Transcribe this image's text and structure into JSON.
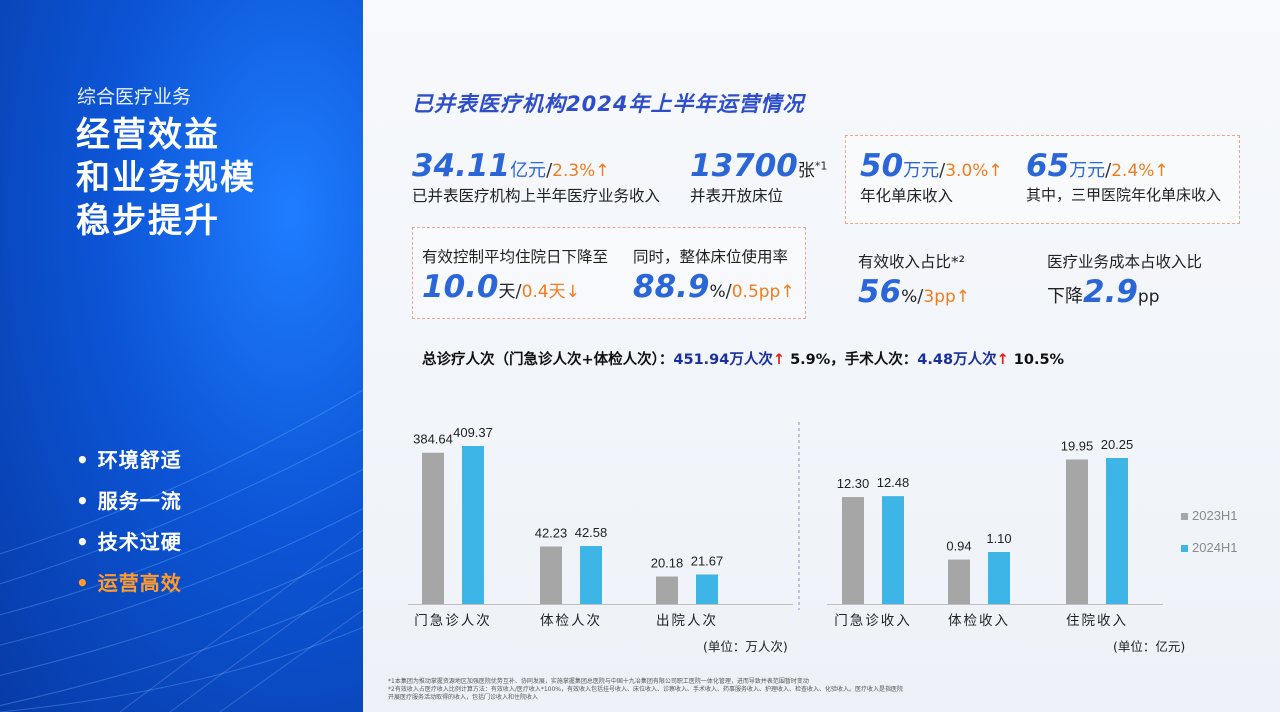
{
  "left_panel": {
    "section": "综合医疗业务",
    "headline": [
      "经营效益",
      "和业务规模",
      "稳步提升"
    ],
    "bullets": [
      {
        "text": "• 环境舒适"
      },
      {
        "text": "• 服务一流"
      },
      {
        "text": "• 技术过硬"
      },
      {
        "text": "• 运营高效"
      }
    ]
  },
  "title": "已并表医疗机构2024年上半年运营情况",
  "kpis": {
    "revenue": {
      "value": "34.11",
      "unit": "亿元",
      "slash": "/",
      "change": "2.3%↑",
      "label": "已并表医疗机构上半年医疗业务收入"
    },
    "beds": {
      "value": "13700",
      "unit": "张",
      "note": "*1",
      "label": "并表开放床位"
    },
    "per_bed": {
      "value": "50",
      "unit": "万元",
      "slash": "/",
      "change": "3.0%↑",
      "label": "年化单床收入"
    },
    "tier3_per_bed": {
      "value": "65",
      "unit": "万元",
      "slash": "/",
      "change": "2.4%↑",
      "label": "其中，三甲医院年化单床收入"
    },
    "stay": {
      "label": "有效控制平均住院日下降至",
      "value": "10.0",
      "unit": "天",
      "slash": "/",
      "change": "0.4天↓"
    },
    "occupancy": {
      "label": "同时，整体床位使用率",
      "value": "88.9",
      "unit": "%",
      "slash": "/",
      "change": "0.5pp↑"
    },
    "effective_income": {
      "label": "有效收入占比*²",
      "value": "56",
      "unit": "%",
      "slash": "/",
      "change": "3pp↑"
    },
    "cost_ratio": {
      "label": "医疗业务成本占收入比",
      "prefix": "下降",
      "value": "2.9",
      "unit": "pp"
    }
  },
  "summary": {
    "p1": "总诊疗人次（门急诊人次+体检人次）：",
    "v1": "451.94万人次",
    "a1": "↑",
    "c1": " 5.9%，",
    "p2": "手术人次：",
    "v2": "4.48万人次",
    "a2": "↑",
    "c2": " 10.5%"
  },
  "chart_data": [
    {
      "type": "bar",
      "categories": [
        "门急诊人次",
        "体检人次",
        "出院人次"
      ],
      "series": [
        {
          "name": "2023H1",
          "values": [
            384.64,
            42.23,
            20.18
          ],
          "labels": [
            "384.64",
            "42.23",
            "20.18"
          ]
        },
        {
          "name": "2024H1",
          "values": [
            409.37,
            42.58,
            21.67
          ],
          "labels": [
            "409.37",
            "42.58",
            "21.67"
          ]
        }
      ],
      "unit_label": "(单位：万人次)"
    },
    {
      "type": "bar",
      "categories": [
        "门急诊收入",
        "体检收入",
        "住院收入"
      ],
      "series": [
        {
          "name": "2023H1",
          "values": [
            12.3,
            0.94,
            19.95
          ],
          "labels": [
            "12.30",
            "0.94",
            "19.95"
          ]
        },
        {
          "name": "2024H1",
          "values": [
            12.48,
            1.1,
            20.25
          ],
          "labels": [
            "12.48",
            "1.10",
            "20.25"
          ]
        }
      ],
      "unit_label": "(单位：亿元)"
    }
  ],
  "legend": [
    {
      "name": "2023H1",
      "color": "#a6a6a6"
    },
    {
      "name": "2024H1",
      "color": "#3db5e6"
    }
  ],
  "colors": {
    "bar_2023": "#a6a6a6",
    "bar_2024": "#3db5e6",
    "accent_orange": "#f07d1d",
    "kpi_blue": "#2b66d9"
  },
  "notes": [
    "*1本集团为推动掌握资源地区加强医院优势互补、协同发展，实施掌握集团总医院与中国十九冶集团有限公司职工医院一体化管理，进而导致并表范围暂时变动",
    "*2有效收入占医疗收入比例计算方法：有效收入/医疗收入*100%，有效收入包括挂号收入、床位收入、诊察收入、手术收入、药事服务收入、护理收入、检查收入、化验收入。医疗收入是指医院开展医疗服务活动取得的收入，包括门诊收入和住院收入"
  ]
}
